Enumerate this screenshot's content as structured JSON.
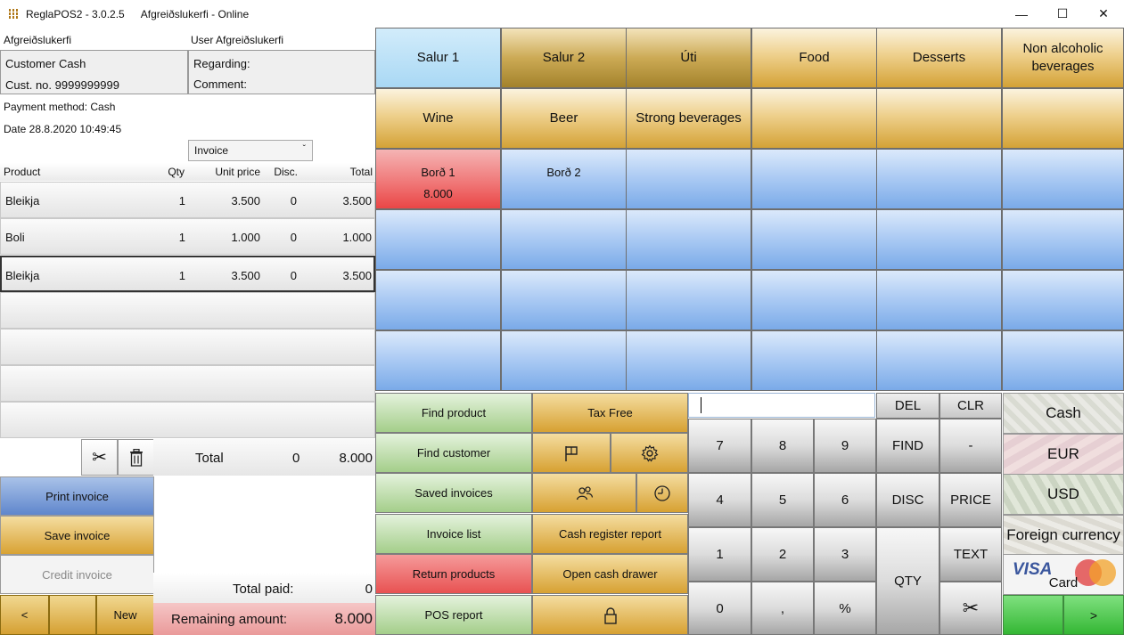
{
  "window": {
    "app_title": "ReglaPOS2 - 3.0.2.5",
    "register_name": "Afgreiðslukerfi",
    "status": "Online"
  },
  "header": {
    "register": "Afgreiðslukerfi",
    "user": "User Afgreiðslukerfi",
    "customer_name": "Customer Cash",
    "customer_no": "Cust. no. 9999999999",
    "regarding_label": "Regarding:",
    "comment_label": "Comment:",
    "payment_method": "Payment method: Cash",
    "date": "Date 28.8.2020 10:49:45",
    "doc_type": "Invoice"
  },
  "lines": {
    "columns": [
      "Product",
      "Qty",
      "Unit price",
      "Disc.",
      "Total"
    ],
    "rows": [
      {
        "product": "Bleikja",
        "qty": "1",
        "unit_price": "3.500",
        "disc": "0",
        "total": "3.500"
      },
      {
        "product": "Boli",
        "qty": "1",
        "unit_price": "1.000",
        "disc": "0",
        "total": "1.000"
      },
      {
        "product": "Bleikja",
        "qty": "1",
        "unit_price": "3.500",
        "disc": "0",
        "total": "3.500"
      }
    ],
    "selected_row": 2
  },
  "totals": {
    "total_label": "Total",
    "total_disc": "0",
    "total_amount": "8.000",
    "paid_label": "Total paid:",
    "paid_amount": "0",
    "remaining_label": "Remaining amount:",
    "remaining_amount": "8.000"
  },
  "left_buttons": {
    "print": "Print invoice",
    "save": "Save invoice",
    "credit": "Credit invoice",
    "prev": "<",
    "new": "New"
  },
  "categories": [
    "Salur 1",
    "Salur 2",
    "Úti",
    "Food",
    "Desserts",
    "Non alcoholic beverages",
    "Wine",
    "Beer",
    "Strong beverages"
  ],
  "tables": [
    {
      "name": "Borð 1",
      "amount": "8.000"
    },
    {
      "name": "Borð 2",
      "amount": ""
    }
  ],
  "actions": {
    "find_product": "Find product",
    "find_customer": "Find customer",
    "saved_invoices": "Saved invoices",
    "invoice_list": "Invoice list",
    "return_products": "Return products",
    "pos_report": "POS report",
    "tax_free": "Tax Free",
    "cash_register_report": "Cash register report",
    "open_cash_drawer": "Open cash drawer"
  },
  "keypad": {
    "del": "DEL",
    "clr": "CLR",
    "find": "FIND",
    "minus": "-",
    "disc": "DISC",
    "price": "PRICE",
    "text": "TEXT",
    "qty": "QTY",
    "k7": "7",
    "k8": "8",
    "k9": "9",
    "k4": "4",
    "k5": "5",
    "k6": "6",
    "k1": "1",
    "k2": "2",
    "k3": "3",
    "k0": "0",
    "comma": ",",
    "percent": "%"
  },
  "payment": {
    "cash": "Cash",
    "eur": "EUR",
    "usd": "USD",
    "foreign": "Foreign currency",
    "card": "Card",
    "next": ">"
  }
}
